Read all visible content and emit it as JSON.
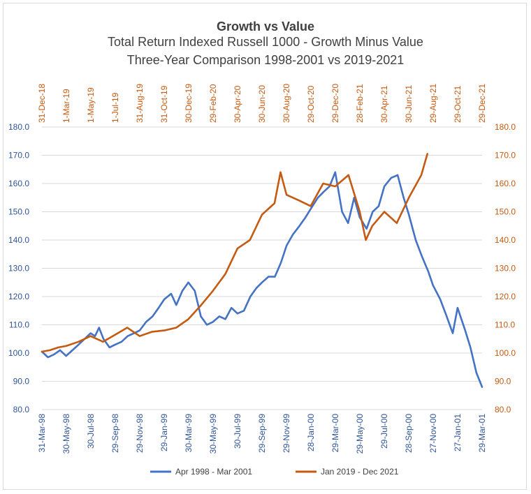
{
  "chart_data": {
    "type": "line",
    "title": "Growth vs Value",
    "subtitle_lines": [
      "Total Return Indexed Russell 1000 - Growth Minus Value",
      "Three-Year Comparison 1998-2001 vs 2019-2021"
    ],
    "ylim": [
      80,
      180
    ],
    "y_ticks": [
      "80.0",
      "90.0",
      "100.0",
      "110.0",
      "120.0",
      "130.0",
      "140.0",
      "150.0",
      "160.0",
      "170.0",
      "180.0"
    ],
    "grid": true,
    "legend_position": "bottom",
    "bottom_x_ticks": [
      "31-Mar-98",
      "30-May-98",
      "30-Jul-98",
      "29-Sep-98",
      "29-Nov-98",
      "29-Jan-99",
      "30-Mar-99",
      "30-May-99",
      "30-Jul-99",
      "29-Sep-99",
      "29-Nov-99",
      "28-Jan-00",
      "29-Mar-00",
      "29-May-00",
      "29-Jul-00",
      "28-Sep-00",
      "27-Nov-00",
      "27-Jan-01",
      "29-Mar-01"
    ],
    "top_x_ticks": [
      "31-Dec-18",
      "1-Mar-19",
      "1-May-19",
      "1-Jul-19",
      "31-Aug-19",
      "31-Oct-19",
      "30-Dec-19",
      "29-Feb-20",
      "30-Apr-20",
      "30-Jun-20",
      "30-Aug-20",
      "29-Oct-20",
      "29-Dec-20",
      "28-Feb-21",
      "30-Apr-21",
      "30-Jun-21",
      "29-Aug-21",
      "29-Oct-21",
      "29-Dec-21"
    ],
    "series": [
      {
        "name": "Apr 1998 - Mar 2001",
        "color": "#4472c4",
        "axis": "bottom",
        "x": [
          "31-Mar-98",
          "15-Apr-98",
          "30-Apr-98",
          "15-May-98",
          "30-May-98",
          "15-Jun-98",
          "30-Jun-98",
          "15-Jul-98",
          "30-Jul-98",
          "10-Aug-98",
          "20-Aug-98",
          "31-Aug-98",
          "15-Sep-98",
          "29-Sep-98",
          "15-Oct-98",
          "30-Oct-98",
          "15-Nov-98",
          "29-Nov-98",
          "15-Dec-98",
          "31-Dec-98",
          "15-Jan-99",
          "29-Jan-99",
          "15-Feb-99",
          "28-Feb-99",
          "15-Mar-99",
          "30-Mar-99",
          "15-Apr-99",
          "30-Apr-99",
          "15-May-99",
          "30-May-99",
          "15-Jun-99",
          "30-Jun-99",
          "15-Jul-99",
          "30-Jul-99",
          "15-Aug-99",
          "31-Aug-99",
          "15-Sep-99",
          "29-Sep-99",
          "15-Oct-99",
          "31-Oct-99",
          "15-Nov-99",
          "29-Nov-99",
          "15-Dec-99",
          "31-Dec-99",
          "15-Jan-00",
          "28-Jan-00",
          "15-Feb-00",
          "29-Feb-00",
          "15-Mar-00",
          "29-Mar-00",
          "15-Apr-00",
          "30-Apr-00",
          "15-May-00",
          "29-May-00",
          "15-Jun-00",
          "30-Jun-00",
          "15-Jul-00",
          "29-Jul-00",
          "15-Aug-00",
          "31-Aug-00",
          "15-Sep-00",
          "28-Sep-00",
          "15-Oct-00",
          "31-Oct-00",
          "15-Nov-00",
          "27-Nov-00",
          "15-Dec-00",
          "31-Dec-00",
          "15-Jan-01",
          "27-Jan-01",
          "15-Feb-01",
          "28-Feb-01",
          "15-Mar-01",
          "29-Mar-01"
        ],
        "values": [
          100.5,
          98.5,
          99.5,
          101,
          99,
          101,
          103,
          105,
          107,
          106,
          109,
          105,
          102,
          103,
          104,
          106,
          107,
          108,
          111,
          113,
          116,
          119,
          121,
          117,
          122,
          125,
          122,
          113,
          110,
          111,
          113,
          112,
          116,
          114,
          115,
          120,
          123,
          125,
          127,
          127,
          132,
          138,
          142,
          145,
          148,
          151,
          155,
          157,
          159,
          164,
          150,
          146,
          155,
          148,
          144,
          150,
          152,
          159,
          162,
          163,
          155,
          149,
          140,
          134,
          129,
          124,
          119,
          113,
          107,
          116,
          108,
          102,
          93,
          88
        ]
      },
      {
        "name": "Jan 2019 - Dec 2021",
        "color": "#c55a11",
        "axis": "top",
        "x": [
          "31-Dec-18",
          "20-Jan-19",
          "10-Feb-19",
          "1-Mar-19",
          "1-Apr-19",
          "1-May-19",
          "1-Jun-19",
          "1-Jul-19",
          "31-Jul-19",
          "31-Aug-19",
          "30-Sep-19",
          "31-Oct-19",
          "30-Nov-19",
          "30-Dec-19",
          "31-Jan-20",
          "29-Feb-20",
          "31-Mar-20",
          "30-Apr-20",
          "31-May-20",
          "30-Jun-20",
          "31-Jul-20",
          "15-Aug-20",
          "30-Aug-20",
          "30-Sep-20",
          "29-Oct-20",
          "29-Nov-20",
          "29-Dec-20",
          "31-Jan-21",
          "28-Feb-21",
          "15-Mar-21",
          "31-Mar-21",
          "30-Apr-21",
          "31-May-21",
          "30-Jun-21",
          "31-Jul-21",
          "15-Aug-21"
        ],
        "values": [
          100.5,
          101,
          102,
          102.5,
          104,
          106,
          104,
          106.5,
          109,
          106,
          107.5,
          108,
          109,
          112,
          117,
          122,
          128,
          137,
          140,
          149,
          153,
          164,
          156,
          154,
          152,
          160,
          159,
          163,
          150,
          140,
          145,
          150,
          146,
          155,
          163,
          170.5
        ]
      }
    ]
  }
}
